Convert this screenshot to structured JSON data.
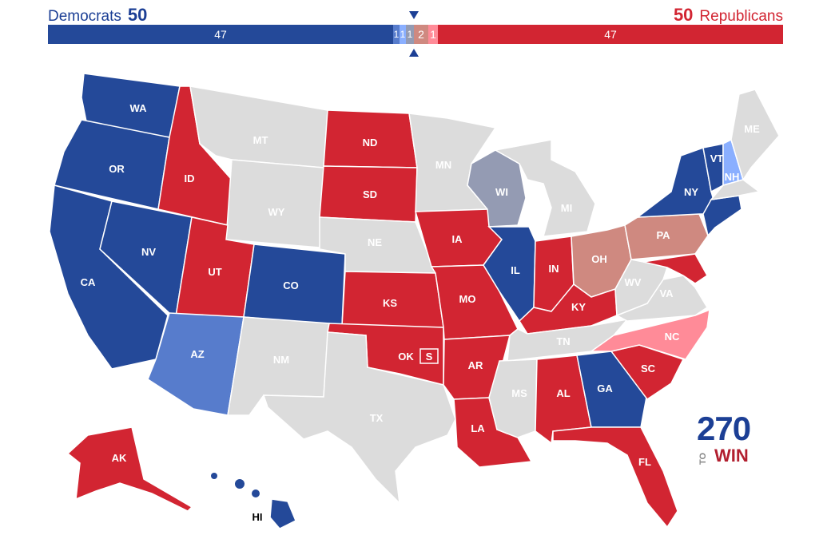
{
  "header": {
    "dem_label": "Democrats",
    "dem_total": "50",
    "rep_label": "Republicans",
    "rep_total": "50"
  },
  "bar": {
    "safe_d": "47",
    "likely_d": "1",
    "lean_d": "1",
    "tilt_d": "1",
    "tilt_r": "2",
    "lean_r": "1",
    "safe_r": "47"
  },
  "colors": {
    "safe_d": "#244999",
    "likely_d": "#577ccc",
    "lean_d": "#8aafff",
    "tilt_d": "#949bb3",
    "tilt_r": "#cf8980",
    "lean_r": "#ff8b98",
    "safe_r": "#d22532",
    "no_race": "#dcdcdc"
  },
  "states": {
    "WA": "WA",
    "OR": "OR",
    "CA": "CA",
    "NV": "NV",
    "ID": "ID",
    "MT": "MT",
    "WY": "WY",
    "UT": "UT",
    "CO": "CO",
    "AZ": "AZ",
    "NM": "NM",
    "ND": "ND",
    "SD": "SD",
    "NE": "NE",
    "KS": "KS",
    "OK": "OK",
    "TX": "TX",
    "MN": "MN",
    "IA": "IA",
    "MO": "MO",
    "AR": "AR",
    "LA": "LA",
    "WI": "WI",
    "IL": "IL",
    "MI": "MI",
    "IN": "IN",
    "OH": "OH",
    "KY": "KY",
    "TN": "TN",
    "MS": "MS",
    "AL": "AL",
    "GA": "GA",
    "FL": "FL",
    "SC": "SC",
    "NC": "NC",
    "VA": "VA",
    "WV": "WV",
    "PA": "PA",
    "NY": "NY",
    "VT": "VT",
    "NH": "NH",
    "ME": "ME",
    "AK": "AK",
    "HI": "HI"
  },
  "special_marker": "S",
  "logo": {
    "number": "270",
    "to": "TO",
    "win": "WIN"
  }
}
